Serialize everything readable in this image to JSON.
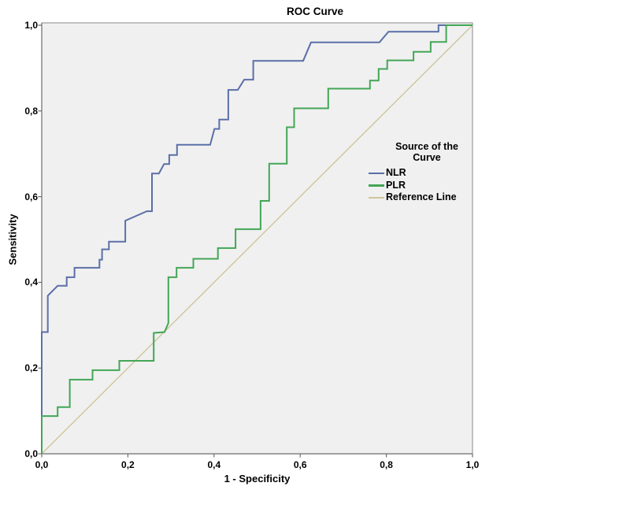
{
  "title": "ROC Curve",
  "axes": {
    "x_label": "1 - Specificity",
    "y_label": "Sensitivity",
    "x_tick_labels": [
      "0,0",
      "0,2",
      "0,4",
      "0,6",
      "0,8",
      "1,0"
    ],
    "y_tick_labels": [
      "0,0",
      "0,2",
      "0,4",
      "0,6",
      "0,8",
      "1,0"
    ]
  },
  "legend": {
    "title_line1": "Source of the",
    "title_line2": "Curve",
    "entries": [
      {
        "label": "NLR",
        "color": "#5b6fa8"
      },
      {
        "label": "PLR",
        "color": "#43a656"
      },
      {
        "label": "Reference Line",
        "color": "#cdc69c"
      }
    ]
  },
  "colors": {
    "plot_background": "#f0f0f0",
    "frame": "#8a8a8a",
    "axis": "#6c6c6c",
    "text": "#000000"
  },
  "chart_data": {
    "type": "line",
    "title": "ROC Curve",
    "xlabel": "1 - Specificity",
    "ylabel": "Sensitivity",
    "xlim": [
      0,
      1
    ],
    "ylim": [
      0,
      1
    ],
    "grid": false,
    "legend_position": "inside-right",
    "x_ticks": [
      0.0,
      0.2,
      0.4,
      0.6,
      0.8,
      1.0
    ],
    "y_ticks": [
      0.0,
      0.2,
      0.4,
      0.6,
      0.8,
      1.0
    ],
    "series": [
      {
        "name": "NLR",
        "color": "#5b6fa8",
        "width": 2,
        "points": [
          [
            0,
            0
          ],
          [
            0,
            0.284
          ],
          [
            0.014,
            0.284
          ],
          [
            0.014,
            0.369
          ],
          [
            0.037,
            0.392
          ],
          [
            0.058,
            0.392
          ],
          [
            0.058,
            0.412
          ],
          [
            0.076,
            0.412
          ],
          [
            0.076,
            0.434
          ],
          [
            0.134,
            0.434
          ],
          [
            0.134,
            0.453
          ],
          [
            0.14,
            0.453
          ],
          [
            0.14,
            0.477
          ],
          [
            0.156,
            0.477
          ],
          [
            0.156,
            0.495
          ],
          [
            0.194,
            0.495
          ],
          [
            0.194,
            0.544
          ],
          [
            0.244,
            0.566
          ],
          [
            0.256,
            0.566
          ],
          [
            0.256,
            0.654
          ],
          [
            0.272,
            0.654
          ],
          [
            0.284,
            0.676
          ],
          [
            0.296,
            0.676
          ],
          [
            0.296,
            0.697
          ],
          [
            0.314,
            0.697
          ],
          [
            0.314,
            0.721
          ],
          [
            0.391,
            0.721
          ],
          [
            0.401,
            0.758
          ],
          [
            0.412,
            0.758
          ],
          [
            0.412,
            0.78
          ],
          [
            0.433,
            0.78
          ],
          [
            0.433,
            0.849
          ],
          [
            0.455,
            0.849
          ],
          [
            0.47,
            0.873
          ],
          [
            0.491,
            0.873
          ],
          [
            0.491,
            0.917
          ],
          [
            0.607,
            0.917
          ],
          [
            0.625,
            0.96
          ],
          [
            0.784,
            0.96
          ],
          [
            0.805,
            0.985
          ],
          [
            0.921,
            0.985
          ],
          [
            0.921,
            1
          ],
          [
            1,
            1
          ]
        ]
      },
      {
        "name": "PLR",
        "color": "#43a656",
        "width": 2,
        "points": [
          [
            0,
            0
          ],
          [
            0,
            0.088
          ],
          [
            0.037,
            0.088
          ],
          [
            0.037,
            0.109
          ],
          [
            0.065,
            0.109
          ],
          [
            0.065,
            0.173
          ],
          [
            0.118,
            0.173
          ],
          [
            0.118,
            0.195
          ],
          [
            0.18,
            0.195
          ],
          [
            0.18,
            0.217
          ],
          [
            0.26,
            0.217
          ],
          [
            0.26,
            0.282
          ],
          [
            0.285,
            0.284
          ],
          [
            0.294,
            0.305
          ],
          [
            0.294,
            0.412
          ],
          [
            0.313,
            0.412
          ],
          [
            0.313,
            0.434
          ],
          [
            0.352,
            0.434
          ],
          [
            0.352,
            0.455
          ],
          [
            0.409,
            0.455
          ],
          [
            0.409,
            0.48
          ],
          [
            0.45,
            0.48
          ],
          [
            0.45,
            0.524
          ],
          [
            0.508,
            0.524
          ],
          [
            0.508,
            0.59
          ],
          [
            0.528,
            0.59
          ],
          [
            0.528,
            0.677
          ],
          [
            0.569,
            0.677
          ],
          [
            0.569,
            0.762
          ],
          [
            0.586,
            0.762
          ],
          [
            0.586,
            0.806
          ],
          [
            0.665,
            0.806
          ],
          [
            0.665,
            0.852
          ],
          [
            0.762,
            0.852
          ],
          [
            0.762,
            0.871
          ],
          [
            0.782,
            0.871
          ],
          [
            0.782,
            0.898
          ],
          [
            0.802,
            0.898
          ],
          [
            0.802,
            0.918
          ],
          [
            0.863,
            0.918
          ],
          [
            0.863,
            0.938
          ],
          [
            0.903,
            0.938
          ],
          [
            0.903,
            0.961
          ],
          [
            0.939,
            0.961
          ],
          [
            0.939,
            1
          ],
          [
            1,
            1
          ]
        ]
      },
      {
        "name": "Reference Line",
        "color": "#cdc69c",
        "width": 1.4,
        "points": [
          [
            0,
            0
          ],
          [
            1,
            1
          ]
        ]
      }
    ]
  }
}
